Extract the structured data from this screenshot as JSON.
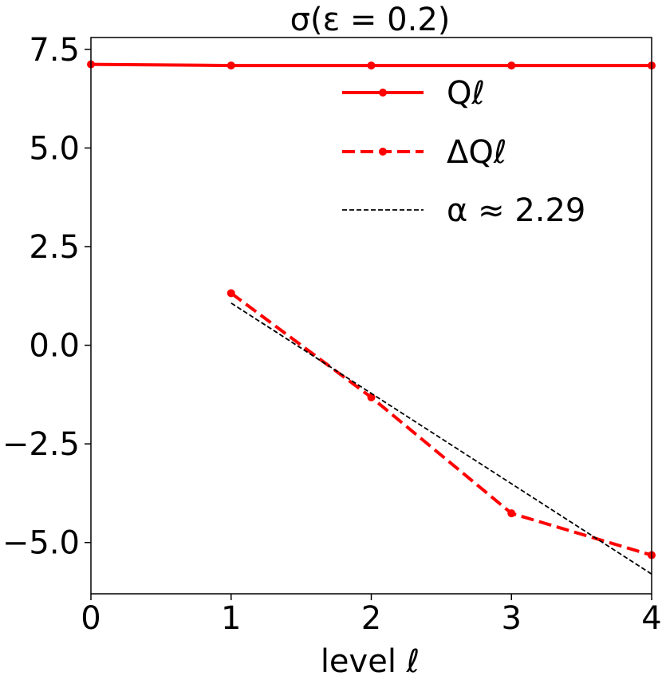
{
  "chart_data": {
    "type": "line",
    "title": "σ(ε = 0.2)",
    "xlabel": "level ℓ",
    "ylabel": "",
    "xlim": [
      0,
      4
    ],
    "ylim": [
      -6.3,
      7.8
    ],
    "xticks": [
      0,
      1,
      2,
      3,
      4
    ],
    "yticks": [
      -5.0,
      -2.5,
      0.0,
      2.5,
      5.0,
      7.5
    ],
    "xtick_labels": [
      "0",
      "1",
      "2",
      "3",
      "4"
    ],
    "ytick_labels": [
      "−5.0",
      "−2.5",
      "0.0",
      "2.5",
      "5.0",
      "7.5"
    ],
    "grid": false,
    "legend_position": "top-right",
    "series": [
      {
        "name": "Qℓ",
        "style": "solid",
        "marker": "dot",
        "color": "#ff0000",
        "x": [
          0,
          1,
          2,
          3,
          4
        ],
        "y": [
          7.12,
          7.09,
          7.09,
          7.09,
          7.09
        ]
      },
      {
        "name": "ΔQℓ",
        "style": "dashed",
        "marker": "dot",
        "color": "#ff0000",
        "x": [
          1,
          2,
          3,
          4
        ],
        "y": [
          1.32,
          -1.32,
          -4.26,
          -5.32
        ]
      },
      {
        "name": "α ≈ 2.29",
        "style": "dotted",
        "marker": "none",
        "color": "#000000",
        "x": [
          1,
          4
        ],
        "y": [
          1.07,
          -5.8
        ]
      }
    ]
  }
}
